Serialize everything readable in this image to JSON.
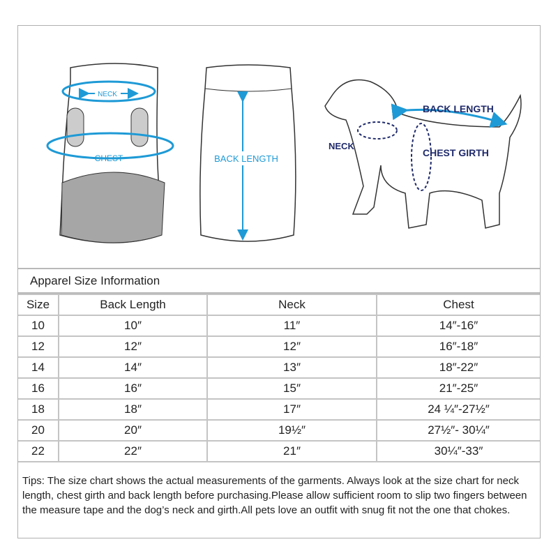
{
  "illustration": {
    "front_labels": {
      "neck": "NECK",
      "chest": "CHEST"
    },
    "back_label": "BACK LENGTH",
    "dog_labels": {
      "back_length": "BACK LENGTH",
      "neck": "NECK",
      "chest_girth": "CHEST GIRTH"
    },
    "colors": {
      "arrow": "#1e9ad6",
      "dog_label": "#1f2a6b",
      "fill_gray": "#a6a6a6"
    }
  },
  "title": "Apparel Size Information",
  "table": {
    "headers": [
      "Size",
      "Back Length",
      "Neck",
      "Chest"
    ],
    "rows": [
      [
        "10",
        "10″",
        "11″",
        "14″-16″"
      ],
      [
        "12",
        "12″",
        "12″",
        "16″-18″"
      ],
      [
        "14",
        "14″",
        "13″",
        "18″-22″"
      ],
      [
        "16",
        "16″",
        "15″",
        "21″-25″"
      ],
      [
        "18",
        "18″",
        "17″",
        "24 ¼″-27½″"
      ],
      [
        "20",
        "20″",
        "19½″",
        "27½″- 30¼″"
      ],
      [
        "22",
        "22″",
        "21″",
        "30¼″-33″"
      ]
    ]
  },
  "tips": "Tips:  The size chart shows the actual measurements of the  garments.  Always look at the size chart for neck length, chest girth and back length before purchasing.Please allow sufficient room to slip two fingers between the measure tape and the dog’s neck and girth.All pets love an outfit with snug fit not the one that chokes."
}
